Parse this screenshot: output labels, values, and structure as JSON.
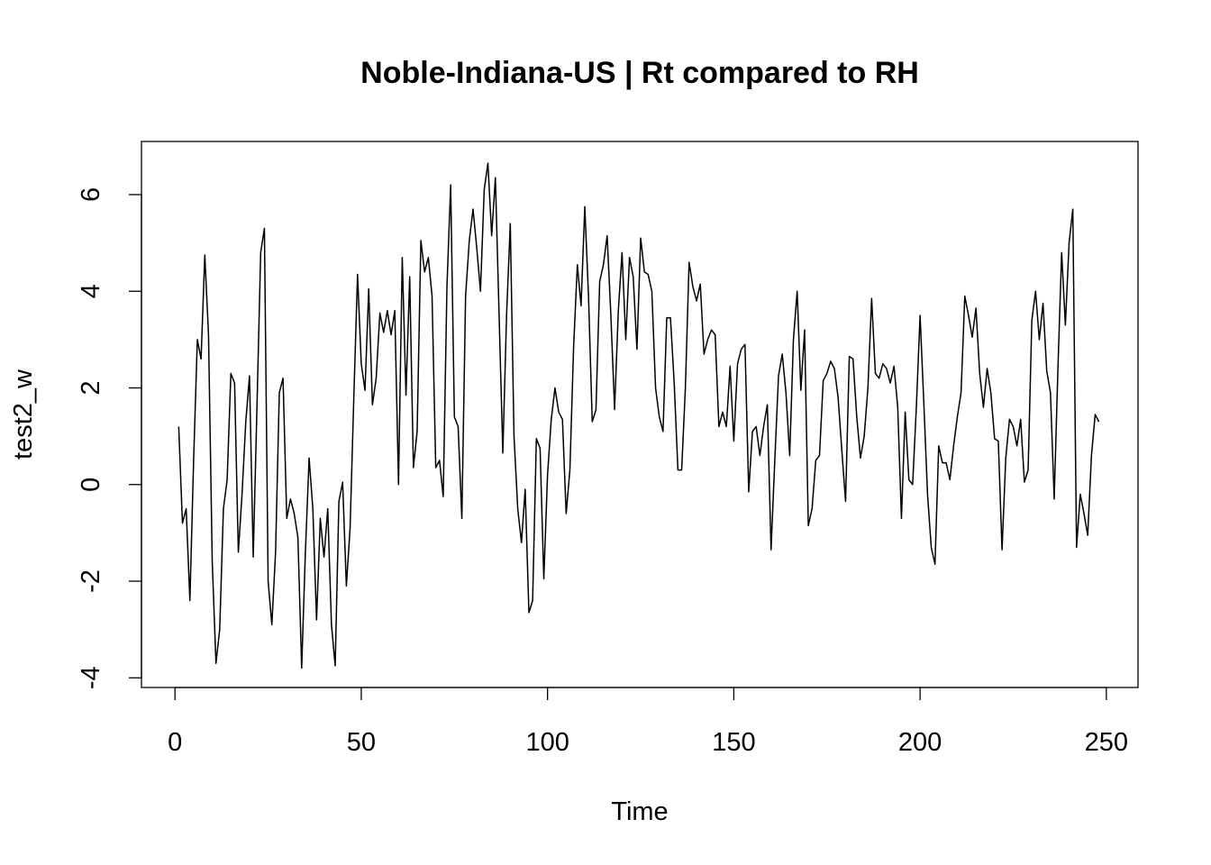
{
  "chart_data": {
    "type": "line",
    "title": "Noble-Indiana-US | Rt compared to RH",
    "xlabel": "Time",
    "ylabel": "test2_w",
    "xlim": [
      -9,
      258.5
    ],
    "ylim": [
      -4.2,
      7.1
    ],
    "x_ticks": [
      0,
      50,
      100,
      150,
      200,
      250
    ],
    "y_ticks": [
      -4,
      -2,
      0,
      2,
      4,
      6
    ],
    "grid": false,
    "legend": "none",
    "color": "#000000",
    "series": [
      {
        "x_start": 1,
        "values": [
          1.2,
          -0.8,
          -0.5,
          -2.4,
          0.5,
          3.0,
          2.6,
          4.75,
          3.1,
          -1.6,
          -3.7,
          -3.0,
          -0.5,
          0.1,
          2.3,
          2.1,
          -1.4,
          -0.2,
          1.3,
          2.25,
          -1.5,
          1.6,
          4.8,
          5.3,
          -2.0,
          -2.9,
          -1.4,
          1.9,
          2.2,
          -0.7,
          -0.3,
          -0.6,
          -1.1,
          -3.8,
          -1.4,
          0.55,
          -0.5,
          -2.8,
          -0.7,
          -1.5,
          -0.5,
          -2.9,
          -3.75,
          -0.35,
          0.05,
          -2.1,
          -0.9,
          1.8,
          4.35,
          2.5,
          1.95,
          4.05,
          1.65,
          2.2,
          3.55,
          3.15,
          3.6,
          3.1,
          3.6,
          0.0,
          4.7,
          1.85,
          4.3,
          0.35,
          1.1,
          5.05,
          4.4,
          4.7,
          3.9,
          0.35,
          0.5,
          -0.25,
          4.1,
          6.2,
          1.4,
          1.2,
          -0.7,
          3.9,
          5.05,
          5.7,
          4.9,
          4.0,
          6.1,
          6.65,
          5.15,
          6.35,
          3.5,
          0.65,
          3.5,
          5.4,
          1.0,
          -0.5,
          -1.2,
          -0.1,
          -2.65,
          -2.4,
          0.95,
          0.75,
          -1.95,
          0.2,
          1.35,
          2.0,
          1.5,
          1.35,
          -0.6,
          0.3,
          2.85,
          4.55,
          3.7,
          5.75,
          3.9,
          1.3,
          1.55,
          4.2,
          4.55,
          5.15,
          3.5,
          1.55,
          3.6,
          4.8,
          3.0,
          4.7,
          4.3,
          2.8,
          5.1,
          4.4,
          4.35,
          4.0,
          2.0,
          1.4,
          1.1,
          3.45,
          3.45,
          2.1,
          0.3,
          0.3,
          2.0,
          4.6,
          4.1,
          3.8,
          4.15,
          2.7,
          3.0,
          3.2,
          3.1,
          1.2,
          1.5,
          1.2,
          2.45,
          0.9,
          2.5,
          2.8,
          2.9,
          -0.15,
          1.1,
          1.2,
          0.6,
          1.2,
          1.65,
          -1.35,
          0.5,
          2.25,
          2.7,
          1.9,
          0.6,
          3.0,
          4.0,
          1.95,
          3.2,
          -0.85,
          -0.5,
          0.5,
          0.6,
          2.15,
          2.3,
          2.55,
          2.4,
          1.8,
          0.7,
          -0.35,
          2.65,
          2.6,
          1.4,
          0.55,
          1.0,
          2.0,
          3.85,
          2.3,
          2.2,
          2.5,
          2.4,
          2.1,
          2.45,
          1.6,
          -0.7,
          1.5,
          0.1,
          0.0,
          1.6,
          3.5,
          1.7,
          -0.2,
          -1.3,
          -1.65,
          0.8,
          0.45,
          0.45,
          0.1,
          0.8,
          1.4,
          1.9,
          3.9,
          3.5,
          3.05,
          3.65,
          2.3,
          1.6,
          2.4,
          1.9,
          0.95,
          0.9,
          -1.35,
          0.55,
          1.35,
          1.2,
          0.8,
          1.35,
          0.05,
          0.3,
          3.4,
          4.0,
          3.0,
          3.75,
          2.35,
          1.9,
          -0.3,
          2.4,
          4.8,
          3.3,
          5.0,
          5.7,
          -1.3,
          -0.2,
          -0.6,
          -1.05,
          0.6,
          1.45,
          1.3
        ]
      }
    ]
  }
}
